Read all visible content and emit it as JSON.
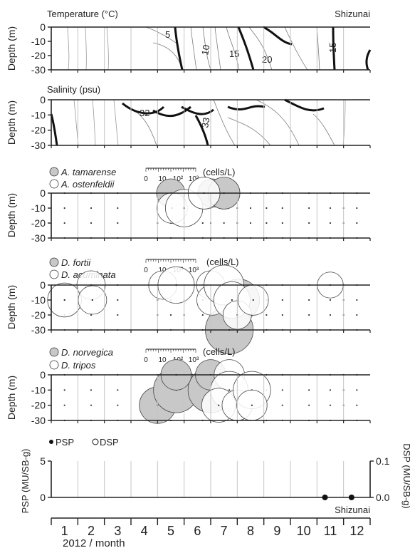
{
  "station": "Shizunai",
  "colors": {
    "axis": "#222222",
    "grid": "#bdbdbd",
    "contour": "#7a7a7a",
    "bold_contour": "#111111",
    "gray_fill": "#c8c8c8",
    "open_fill": "#ffffff"
  },
  "chart_data": [
    {
      "id": "temperature",
      "type": "contour",
      "title": "Temperature (°C)",
      "ylabel": "Depth (m)",
      "ylim": [
        0,
        -30
      ],
      "yticks": [
        "0",
        "-10",
        "-20",
        "-30"
      ],
      "station_label": "Shizunai",
      "contour_labels": [
        "5",
        "10",
        "15",
        "20",
        "15"
      ]
    },
    {
      "id": "salinity",
      "type": "contour",
      "title": "Salinity (psu)",
      "ylabel": "Depth (m)",
      "ylim": [
        0,
        -30
      ],
      "yticks": [
        "0",
        "-10",
        "-20",
        "-30"
      ],
      "contour_labels": [
        "32",
        "33"
      ]
    },
    {
      "id": "alexandrium",
      "type": "scatter",
      "ylabel": "Depth (m)",
      "ylim": [
        0,
        -30
      ],
      "yticks": [
        "0",
        "-10",
        "-20",
        "-30"
      ],
      "legend": [
        {
          "name": "A. tamarense",
          "fill": "gray"
        },
        {
          "name": "A. ostenfeldii",
          "fill": "open"
        }
      ],
      "size_scale": {
        "labels": [
          "0",
          "10",
          "10²",
          "10³"
        ],
        "unit": "(cells/L)"
      },
      "series": [
        {
          "name": "A. tamarense",
          "fill": "gray",
          "points": [
            {
              "x": 5.0,
              "y": 0,
              "value": 100
            },
            {
              "x": 6.55,
              "y": 0,
              "value": 100
            },
            {
              "x": 7.0,
              "y": 0,
              "value": 200
            }
          ]
        },
        {
          "name": "A. ostenfeldii",
          "fill": "open",
          "points": [
            {
              "x": 5.05,
              "y": -10,
              "value": 150
            },
            {
              "x": 5.5,
              "y": -10,
              "value": 600
            },
            {
              "x": 6.25,
              "y": 0,
              "value": 200
            }
          ]
        }
      ]
    },
    {
      "id": "dinophysis1",
      "type": "scatter",
      "ylabel": "Depth (m)",
      "ylim": [
        0,
        -30
      ],
      "yticks": [
        "0",
        "-10",
        "-20",
        "-30"
      ],
      "legend": [
        {
          "name": "D. fortii",
          "fill": "gray"
        },
        {
          "name": "D. acuminata",
          "fill": "open"
        }
      ],
      "size_scale": {
        "labels": [
          "0",
          "10",
          "10²",
          "10³"
        ],
        "unit": "(cells/L)"
      },
      "series": [
        {
          "name": "D. fortii",
          "fill": "gray",
          "points": [
            {
              "x": 7.55,
              "y": -10,
              "value": 1500
            },
            {
              "x": 7.2,
              "y": -30,
              "value": 5000
            }
          ]
        },
        {
          "name": "D. acuminata",
          "fill": "open",
          "points": [
            {
              "x": 1.0,
              "y": -10,
              "value": 300
            },
            {
              "x": 2.0,
              "y": 0,
              "value": 100
            },
            {
              "x": 2.05,
              "y": -10,
              "value": 100
            },
            {
              "x": 4.7,
              "y": 0,
              "value": 100
            },
            {
              "x": 5.2,
              "y": 0,
              "value": 500
            },
            {
              "x": 6.5,
              "y": 0,
              "value": 100
            },
            {
              "x": 6.55,
              "y": -10,
              "value": 150
            },
            {
              "x": 7.0,
              "y": 0,
              "value": 1000
            },
            {
              "x": 7.3,
              "y": -10,
              "value": 500
            },
            {
              "x": 7.5,
              "y": -20,
              "value": 100
            },
            {
              "x": 8.1,
              "y": -10,
              "value": 150
            },
            {
              "x": 11.0,
              "y": 0,
              "value": 60
            }
          ]
        }
      ]
    },
    {
      "id": "dinophysis2",
      "type": "scatter",
      "ylabel": "Depth (m)",
      "ylim": [
        0,
        -30
      ],
      "yticks": [
        "0",
        "-10",
        "-20",
        "-30"
      ],
      "legend": [
        {
          "name": "D. norvegica",
          "fill": "gray"
        },
        {
          "name": "D. tripos",
          "fill": "open"
        }
      ],
      "size_scale": {
        "labels": [
          "0",
          "10",
          "10²",
          "10³"
        ],
        "unit": "(cells/L)"
      },
      "series": [
        {
          "name": "D. norvegica",
          "fill": "gray",
          "points": [
            {
              "x": 4.5,
              "y": -20,
              "value": 500
            },
            {
              "x": 5.2,
              "y": -10,
              "value": 3000
            },
            {
              "x": 6.5,
              "y": -10,
              "value": 3000
            },
            {
              "x": 5.2,
              "y": 0,
              "value": 150
            },
            {
              "x": 6.5,
              "y": 0,
              "value": 150
            }
          ]
        },
        {
          "name": "D. tripos",
          "fill": "open",
          "points": [
            {
              "x": 7.2,
              "y": 0,
              "value": 150
            },
            {
              "x": 7.2,
              "y": -10,
              "value": 600
            },
            {
              "x": 6.8,
              "y": -20,
              "value": 300
            },
            {
              "x": 7.5,
              "y": -20,
              "value": 150
            },
            {
              "x": 8.05,
              "y": -10,
              "value": 600
            },
            {
              "x": 8.05,
              "y": -20,
              "value": 150
            }
          ]
        }
      ]
    },
    {
      "id": "toxins",
      "type": "scatter",
      "ylabel_left": "PSP (MU/SB-g)",
      "ylabel_right": "DSP (MU/SB-g)",
      "ylim_left": [
        0,
        5
      ],
      "ylim_right": [
        0,
        0.1
      ],
      "yticks_left": [
        "0",
        "5"
      ],
      "yticks_right": [
        "0.0",
        "0.1"
      ],
      "legend": [
        {
          "name": "PSP",
          "marker": "filled"
        },
        {
          "name": "DSP",
          "marker": "open"
        }
      ],
      "station_label": "Shizunai",
      "series": [
        {
          "name": "PSP",
          "points": [
            {
              "x": 10.8,
              "y": 0
            },
            {
              "x": 11.8,
              "y": 0
            }
          ]
        }
      ]
    }
  ],
  "xaxis": {
    "months": [
      "1",
      "2",
      "3",
      "4",
      "5",
      "6",
      "7",
      "8",
      "9",
      "10",
      "11",
      "12"
    ],
    "label": "2012 / month"
  }
}
